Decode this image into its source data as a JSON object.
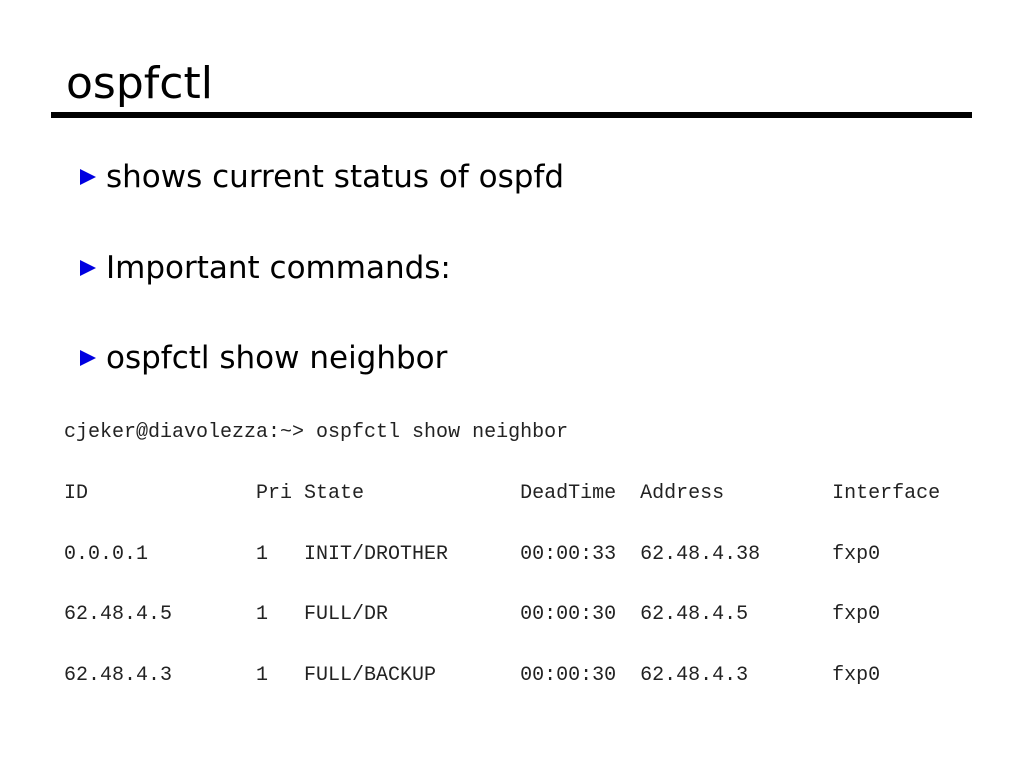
{
  "title": "ospfctl",
  "accent_color": "#0000e0",
  "bullets": [
    {
      "icon": "triangle-right-icon",
      "text": "shows current status of ospfd"
    },
    {
      "icon": "triangle-right-icon",
      "text": "Important commands:"
    },
    {
      "icon": "triangle-right-icon",
      "text": "ospfctl show neighbor"
    }
  ],
  "terminal": {
    "prompt_line": "cjeker@diavolezza:~> ospfctl show neighbor",
    "headers": [
      "ID",
      "Pri",
      "State",
      "DeadTime",
      "Address",
      "Interface"
    ],
    "rows": [
      [
        "0.0.0.1",
        "1",
        "INIT/DROTHER",
        "00:00:33",
        "62.48.4.38",
        "fxp0"
      ],
      [
        "62.48.4.5",
        "1",
        "FULL/DR",
        "00:00:30",
        "62.48.4.5",
        "fxp0"
      ],
      [
        "62.48.4.3",
        "1",
        "FULL/BACKUP",
        "00:00:30",
        "62.48.4.3",
        "fxp0"
      ]
    ]
  }
}
